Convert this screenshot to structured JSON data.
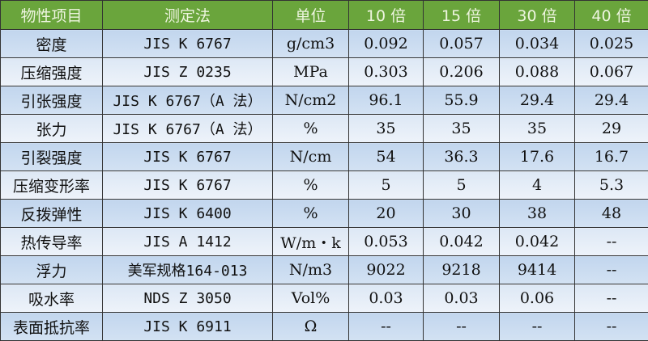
{
  "headers": [
    "物性项目",
    "测定法",
    "单位",
    "10 倍",
    "15 倍",
    "30 倍",
    "40 倍"
  ],
  "rows": [
    [
      "密度",
      "JIS K 6767",
      "g/cm3",
      "0.092",
      "0.057",
      "0.034",
      "0.025"
    ],
    [
      "压缩强度",
      "JIS Z 0235",
      "MPa",
      "0.303",
      "0.206",
      "0.088",
      "0.067"
    ],
    [
      "引张强度",
      "JIS K 6767（A 法）",
      "N/cm2",
      "96.1",
      "55.9",
      "29.4",
      "29.4"
    ],
    [
      "张力",
      "JIS K 6767（A 法）",
      "%",
      "35",
      "35",
      "35",
      "29"
    ],
    [
      "引裂强度",
      "JIS K 6767",
      "N/cm",
      "54",
      "36.3",
      "17.6",
      "16.7"
    ],
    [
      "压缩变形率",
      "JIS K 6767",
      "%",
      "5",
      "5",
      "4",
      "5.3"
    ],
    [
      "反拨弹性",
      "JIS K 6400",
      "%",
      "20",
      "30",
      "38",
      "48"
    ],
    [
      "热传导率",
      "JIS A 1412",
      "W/m・k",
      "0.053",
      "0.042",
      "0.042",
      "--"
    ],
    [
      "浮力",
      "美军规格164-013",
      "N/m3",
      "9022",
      "9218",
      "9414",
      "--"
    ],
    [
      "吸水率",
      "NDS Z 3050",
      "Vol%",
      "0.03",
      "0.03",
      "0.06",
      "--"
    ],
    [
      "表面抵抗率",
      "JIS K 6911",
      "Ω",
      "--",
      "--",
      "--",
      "--"
    ]
  ],
  "colors": {
    "header_bg": "#6aa53c",
    "row_blue": "#c6d9ee",
    "row_light": "#e6eef8"
  }
}
